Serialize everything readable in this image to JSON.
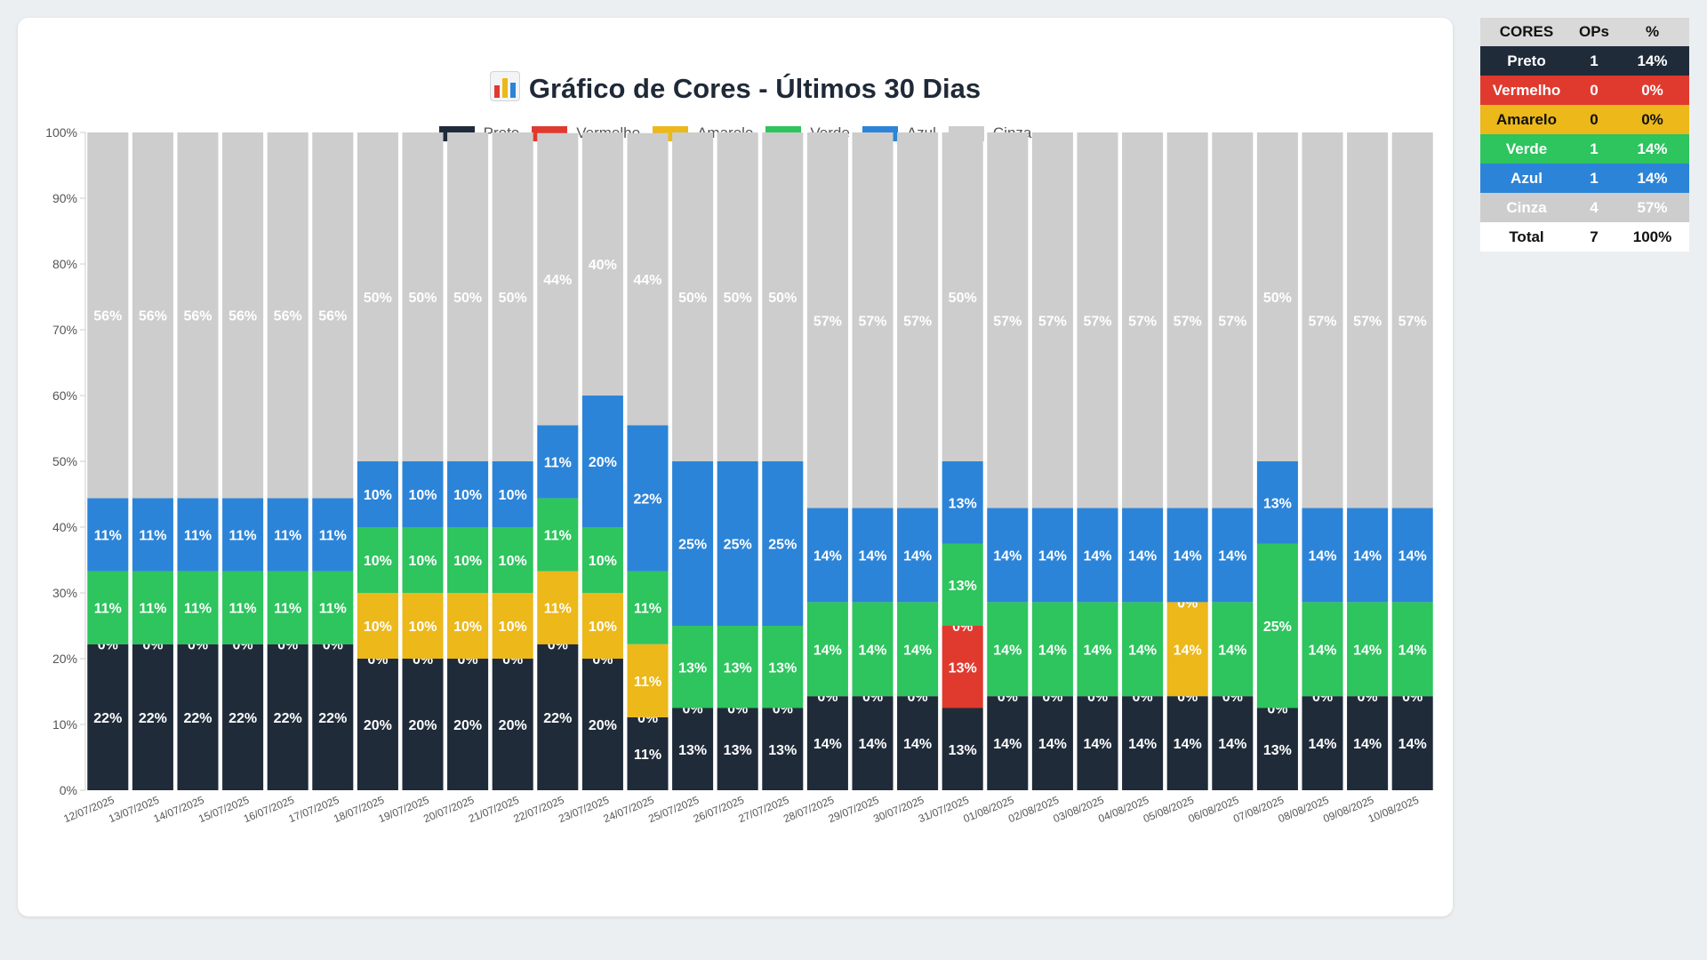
{
  "title": "Gráfico de Cores - Últimos 30 Dias",
  "title_icon": "bar-chart-icon",
  "chart_data": {
    "type": "bar",
    "stacked": true,
    "ylim": [
      0,
      100
    ],
    "y_ticks": [
      "0%",
      "10%",
      "20%",
      "30%",
      "40%",
      "50%",
      "60%",
      "70%",
      "80%",
      "90%",
      "100%"
    ],
    "legend_position": "top",
    "categories": [
      "12/07/2025",
      "13/07/2025",
      "14/07/2025",
      "15/07/2025",
      "16/07/2025",
      "17/07/2025",
      "18/07/2025",
      "19/07/2025",
      "20/07/2025",
      "21/07/2025",
      "22/07/2025",
      "23/07/2025",
      "24/07/2025",
      "25/07/2025",
      "26/07/2025",
      "27/07/2025",
      "28/07/2025",
      "29/07/2025",
      "30/07/2025",
      "31/07/2025",
      "01/08/2025",
      "02/08/2025",
      "03/08/2025",
      "04/08/2025",
      "05/08/2025",
      "06/08/2025",
      "07/08/2025",
      "08/08/2025",
      "09/08/2025",
      "10/08/2025"
    ],
    "series": [
      {
        "name": "Preto",
        "color": "#202b3a",
        "values": [
          22.2,
          22.2,
          22.2,
          22.2,
          22.2,
          22.2,
          20,
          20,
          20,
          20,
          22.2,
          20,
          11.1,
          12.5,
          12.5,
          12.5,
          14.3,
          14.3,
          14.3,
          12.5,
          14.3,
          14.3,
          14.3,
          14.3,
          14.3,
          14.3,
          12.5,
          14.3,
          14.3,
          14.3
        ],
        "labels": [
          "22%",
          "22%",
          "22%",
          "22%",
          "22%",
          "22%",
          "20%",
          "20%",
          "20%",
          "20%",
          "22%",
          "20%",
          "11%",
          "13%",
          "13%",
          "13%",
          "14%",
          "14%",
          "14%",
          "13%",
          "14%",
          "14%",
          "14%",
          "14%",
          "14%",
          "14%",
          "13%",
          "14%",
          "14%",
          "14%"
        ]
      },
      {
        "name": "Vermelho",
        "color": "#e03a2f",
        "values": [
          0,
          0,
          0,
          0,
          0,
          0,
          0,
          0,
          0,
          0,
          0,
          0,
          0,
          0,
          0,
          0,
          0,
          0,
          0,
          12.5,
          0,
          0,
          0,
          0,
          0,
          0,
          0,
          0,
          0,
          0
        ],
        "labels": [
          "0%",
          "0%",
          "0%",
          "0%",
          "0%",
          "0%",
          "0%",
          "0%",
          "0%",
          "0%",
          "0%",
          "0%",
          "0%",
          "0%",
          "0%",
          "0%",
          "0%",
          "0%",
          "0%",
          "13%",
          "0%",
          "0%",
          "0%",
          "0%",
          "0%",
          "0%",
          "0%",
          "0%",
          "0%",
          "0%"
        ]
      },
      {
        "name": "Amarelo",
        "color": "#ecb81a",
        "values": [
          0,
          0,
          0,
          0,
          0,
          0,
          10,
          10,
          10,
          10,
          11.1,
          10,
          11.1,
          0,
          0,
          0,
          0,
          0,
          0,
          0,
          0,
          0,
          0,
          0,
          14.3,
          0,
          0,
          0,
          0,
          0
        ],
        "labels": [
          "",
          "",
          "",
          "",
          "",
          "",
          "10%",
          "10%",
          "10%",
          "10%",
          "11%",
          "10%",
          "11%",
          "",
          "",
          "",
          "",
          "",
          "",
          "0%",
          "",
          "",
          "",
          "",
          "14%",
          "",
          "",
          "",
          "",
          ""
        ]
      },
      {
        "name": "Verde",
        "color": "#2ec45e",
        "values": [
          11.1,
          11.1,
          11.1,
          11.1,
          11.1,
          11.1,
          10,
          10,
          10,
          10,
          11.1,
          10,
          11.1,
          12.5,
          12.5,
          12.5,
          14.3,
          14.3,
          14.3,
          12.5,
          14.3,
          14.3,
          14.3,
          14.3,
          0,
          14.3,
          25,
          14.3,
          14.3,
          14.3
        ],
        "labels": [
          "11%",
          "11%",
          "11%",
          "11%",
          "11%",
          "11%",
          "10%",
          "10%",
          "10%",
          "10%",
          "11%",
          "10%",
          "11%",
          "13%",
          "13%",
          "13%",
          "14%",
          "14%",
          "14%",
          "13%",
          "14%",
          "14%",
          "14%",
          "14%",
          "0%",
          "14%",
          "25%",
          "14%",
          "14%",
          "14%"
        ]
      },
      {
        "name": "Azul",
        "color": "#2c84d8",
        "values": [
          11.1,
          11.1,
          11.1,
          11.1,
          11.1,
          11.1,
          10,
          10,
          10,
          10,
          11.1,
          20,
          22.2,
          25,
          25,
          25,
          14.3,
          14.3,
          14.3,
          12.5,
          14.3,
          14.3,
          14.3,
          14.3,
          14.3,
          14.3,
          12.5,
          14.3,
          14.3,
          14.3
        ],
        "labels": [
          "11%",
          "11%",
          "11%",
          "11%",
          "11%",
          "11%",
          "10%",
          "10%",
          "10%",
          "10%",
          "11%",
          "20%",
          "22%",
          "25%",
          "25%",
          "25%",
          "14%",
          "14%",
          "14%",
          "13%",
          "14%",
          "14%",
          "14%",
          "14%",
          "14%",
          "14%",
          "13%",
          "14%",
          "14%",
          "14%"
        ]
      },
      {
        "name": "Cinza",
        "color": "#cdcdcd",
        "values": [
          55.6,
          55.6,
          55.6,
          55.6,
          55.6,
          55.6,
          50,
          50,
          50,
          50,
          44.4,
          40,
          44.4,
          50,
          50,
          50,
          57.1,
          57.1,
          57.1,
          50,
          57.1,
          57.1,
          57.1,
          57.1,
          57.1,
          57.1,
          50,
          57.1,
          57.1,
          57.1
        ],
        "labels": [
          "56%",
          "56%",
          "56%",
          "56%",
          "56%",
          "56%",
          "50%",
          "50%",
          "50%",
          "50%",
          "44%",
          "40%",
          "44%",
          "50%",
          "50%",
          "50%",
          "57%",
          "57%",
          "57%",
          "50%",
          "57%",
          "57%",
          "57%",
          "57%",
          "57%",
          "57%",
          "50%",
          "57%",
          "57%",
          "57%"
        ]
      }
    ]
  },
  "summary": {
    "headers": [
      "CORES",
      "OPs",
      "%"
    ],
    "rows": [
      {
        "name": "Preto",
        "ops": "1",
        "pct": "14%",
        "bg": "#202b3a",
        "fg": "#ffffff"
      },
      {
        "name": "Vermelho",
        "ops": "0",
        "pct": "0%",
        "bg": "#e03a2f",
        "fg": "#ffffff"
      },
      {
        "name": "Amarelo",
        "ops": "0",
        "pct": "0%",
        "bg": "#ecb81a",
        "fg": "#111111"
      },
      {
        "name": "Verde",
        "ops": "1",
        "pct": "14%",
        "bg": "#2ec45e",
        "fg": "#ffffff"
      },
      {
        "name": "Azul",
        "ops": "1",
        "pct": "14%",
        "bg": "#2c84d8",
        "fg": "#ffffff"
      },
      {
        "name": "Cinza",
        "ops": "4",
        "pct": "57%",
        "bg": "#cdcdcd",
        "fg": "#ffffff"
      },
      {
        "name": "Total",
        "ops": "7",
        "pct": "100%",
        "bg": "#ffffff",
        "fg": "#111111"
      }
    ]
  }
}
